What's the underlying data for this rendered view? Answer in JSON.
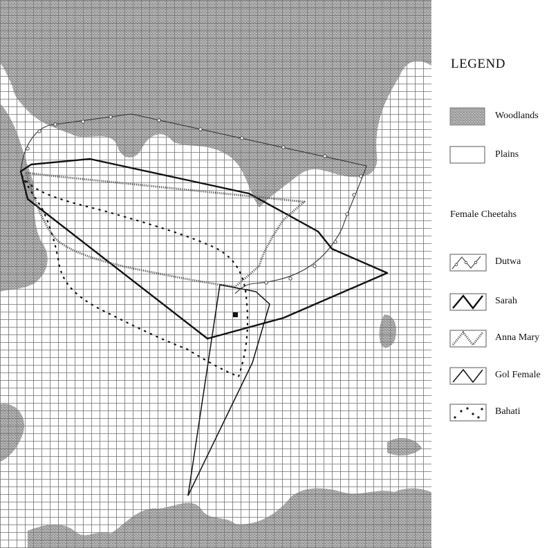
{
  "legend": {
    "title": "LEGEND",
    "habitat": [
      {
        "label": "Woodlands",
        "swatch": "woodland-pattern"
      },
      {
        "label": "Plains",
        "swatch": "plain-box"
      }
    ],
    "subtitle": "Female Cheetahs",
    "cheetahs": [
      {
        "label": "Dutwa",
        "line_style": "thin-line-open-circles"
      },
      {
        "label": "Sarah",
        "line_style": "bold-solid"
      },
      {
        "label": "Anna Mary",
        "line_style": "beaded-line"
      },
      {
        "label": "Gol Female",
        "line_style": "thin-solid"
      },
      {
        "label": "Bahati",
        "line_style": "dots"
      }
    ]
  },
  "colors": {
    "woodland": "#9a9a9a",
    "grid": "#7a7a7a",
    "lines": "#111111"
  }
}
